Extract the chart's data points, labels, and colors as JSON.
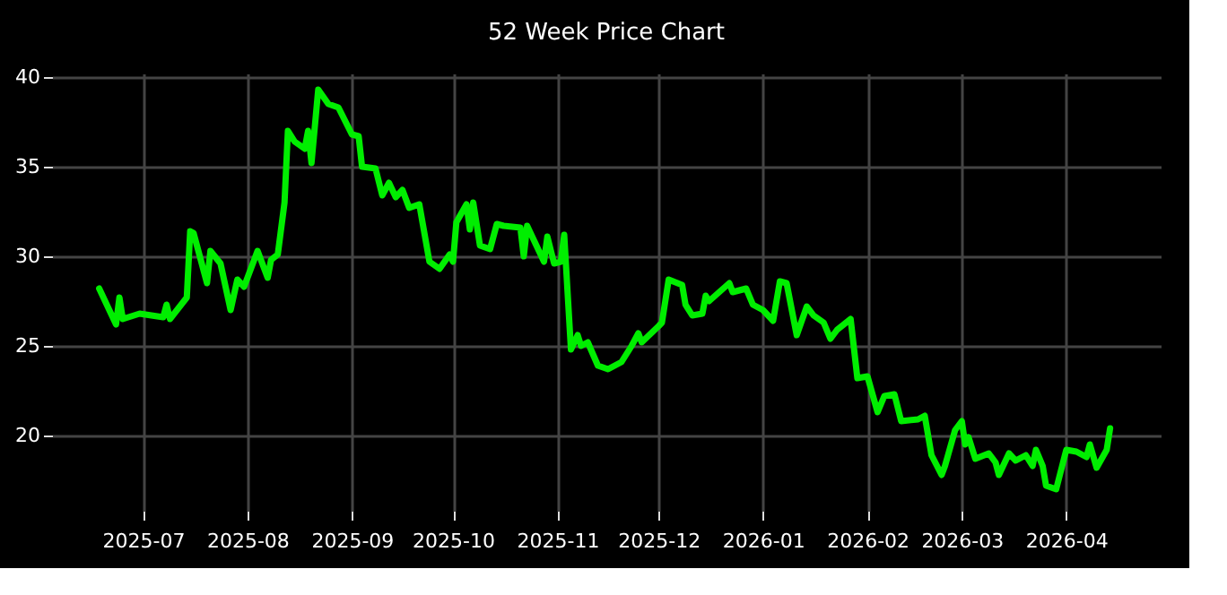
{
  "chart_data": {
    "type": "line",
    "title": "52 Week Price Chart",
    "x": [
      "2025-06-18",
      "2025-06-23",
      "2025-06-24",
      "2025-06-25",
      "2025-06-30",
      "2025-07-07",
      "2025-07-08",
      "2025-07-09",
      "2025-07-14",
      "2025-07-15",
      "2025-07-16",
      "2025-07-20",
      "2025-07-21",
      "2025-07-24",
      "2025-07-27",
      "2025-07-29",
      "2025-07-31",
      "2025-08-04",
      "2025-08-07",
      "2025-08-08",
      "2025-08-10",
      "2025-08-12",
      "2025-08-13",
      "2025-08-15",
      "2025-08-18",
      "2025-08-19",
      "2025-08-20",
      "2025-08-22",
      "2025-08-25",
      "2025-08-28",
      "2025-09-01",
      "2025-09-03",
      "2025-09-04",
      "2025-09-08",
      "2025-09-10",
      "2025-09-12",
      "2025-09-14",
      "2025-09-16",
      "2025-09-18",
      "2025-09-21",
      "2025-09-24",
      "2025-09-27",
      "2025-09-30",
      "2025-10-01",
      "2025-10-02",
      "2025-10-05",
      "2025-10-06",
      "2025-10-07",
      "2025-10-09",
      "2025-10-12",
      "2025-10-14",
      "2025-10-16",
      "2025-10-21",
      "2025-10-22",
      "2025-10-23",
      "2025-10-26",
      "2025-10-28",
      "2025-10-29",
      "2025-10-31",
      "2025-11-02",
      "2025-11-03",
      "2025-11-05",
      "2025-11-07",
      "2025-11-08",
      "2025-11-10",
      "2025-11-13",
      "2025-11-16",
      "2025-11-20",
      "2025-11-23",
      "2025-11-25",
      "2025-11-26",
      "2025-12-01",
      "2025-12-02",
      "2025-12-04",
      "2025-12-08",
      "2025-12-09",
      "2025-12-11",
      "2025-12-14",
      "2025-12-15",
      "2025-12-16",
      "2025-12-19",
      "2025-12-22",
      "2025-12-23",
      "2025-12-27",
      "2025-12-29",
      "2026-01-01",
      "2026-01-04",
      "2026-01-06",
      "2026-01-08",
      "2026-01-11",
      "2026-01-14",
      "2026-01-16",
      "2026-01-19",
      "2026-01-21",
      "2026-01-23",
      "2026-01-27",
      "2026-01-29",
      "2026-02-01",
      "2026-02-04",
      "2026-02-06",
      "2026-02-09",
      "2026-02-11",
      "2026-02-16",
      "2026-02-18",
      "2026-02-20",
      "2026-02-23",
      "2026-02-24",
      "2026-02-27",
      "2026-03-01",
      "2026-03-02",
      "2026-03-03",
      "2026-03-05",
      "2026-03-09",
      "2026-03-11",
      "2026-03-12",
      "2026-03-15",
      "2026-03-17",
      "2026-03-20",
      "2026-03-22",
      "2026-03-23",
      "2026-03-25",
      "2026-03-26",
      "2026-03-29",
      "2026-04-01",
      "2026-04-04",
      "2026-04-07",
      "2026-04-08",
      "2026-04-10",
      "2026-04-13",
      "2026-04-14"
    ],
    "series": [
      {
        "color": "#00ee00",
        "values": [
          28.2,
          26.2,
          27.7,
          26.5,
          26.8,
          26.6,
          27.3,
          26.5,
          27.7,
          31.4,
          31.3,
          28.5,
          30.3,
          29.6,
          27.0,
          28.7,
          28.3,
          30.3,
          28.8,
          29.8,
          30.1,
          33.0,
          37.0,
          36.4,
          36.0,
          37.0,
          35.2,
          39.3,
          38.5,
          38.3,
          36.8,
          36.7,
          35.0,
          34.9,
          33.4,
          34.1,
          33.3,
          33.7,
          32.7,
          32.9,
          29.7,
          29.3,
          30.1,
          29.7,
          31.9,
          32.9,
          31.5,
          33.0,
          30.6,
          30.4,
          31.8,
          31.7,
          31.6,
          30.0,
          31.7,
          30.5,
          29.7,
          31.1,
          29.6,
          29.7,
          31.2,
          24.8,
          25.6,
          25.0,
          25.2,
          23.9,
          23.7,
          24.1,
          25.0,
          25.7,
          25.2,
          26.1,
          26.3,
          28.7,
          28.4,
          27.3,
          26.7,
          26.8,
          27.8,
          27.5,
          28.0,
          28.5,
          28.0,
          28.2,
          27.3,
          27.0,
          26.4,
          28.6,
          28.5,
          25.6,
          27.2,
          26.7,
          26.3,
          25.4,
          25.9,
          26.5,
          23.2,
          23.3,
          21.3,
          22.2,
          22.3,
          20.8,
          20.9,
          21.1,
          18.9,
          17.8,
          18.3,
          20.3,
          20.8,
          19.5,
          19.9,
          18.7,
          19.0,
          18.5,
          17.8,
          19.0,
          18.6,
          18.9,
          18.3,
          19.2,
          18.3,
          17.2,
          17.0,
          19.2,
          19.1,
          18.8,
          19.5,
          18.2,
          19.2,
          20.4
        ]
      }
    ],
    "xlim": [
      "2025-06-04",
      "2026-04-29"
    ],
    "xticks": [
      "2025-07",
      "2025-08",
      "2025-09",
      "2025-10",
      "2025-11",
      "2025-12",
      "2026-01",
      "2026-02",
      "2026-03",
      "2026-04"
    ],
    "ylim": [
      15.8,
      40.2
    ],
    "yticks": [
      20,
      25,
      30,
      35,
      40
    ],
    "grid": true,
    "line_style": "solid"
  }
}
